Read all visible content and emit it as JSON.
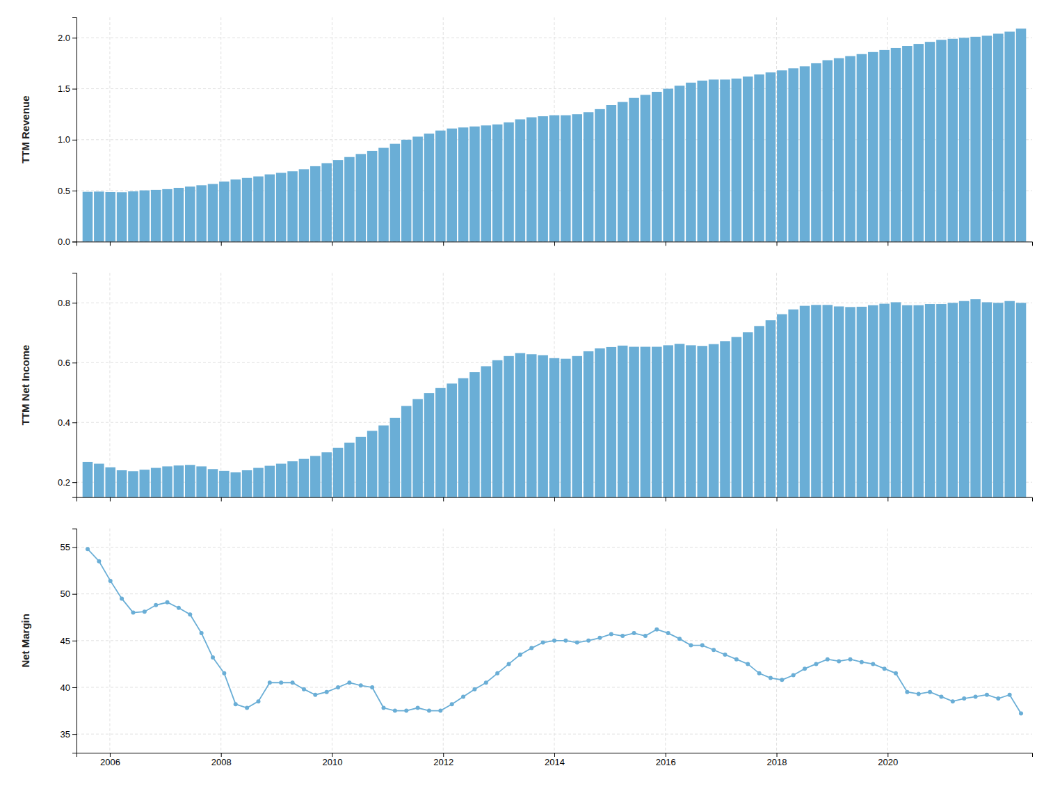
{
  "chart_data": [
    {
      "type": "bar",
      "ylabel": "TTM Revenue",
      "color": "#6aaed6",
      "grid": true,
      "tick_labels": "y",
      "x": [
        2005.6,
        2005.8049,
        2006.0098,
        2006.2146,
        2006.4195,
        2006.6244,
        2006.8293,
        2007.0341,
        2007.239,
        2007.4439,
        2007.6488,
        2007.8537,
        2008.0585,
        2008.2634,
        2008.4683,
        2008.6732,
        2008.878,
        2009.0829,
        2009.2878,
        2009.4927,
        2009.6976,
        2009.9024,
        2010.1073,
        2010.3122,
        2010.5171,
        2010.722,
        2010.9268,
        2011.1317,
        2011.3366,
        2011.5415,
        2011.7463,
        2011.9512,
        2012.1561,
        2012.361,
        2012.5659,
        2012.7707,
        2012.9756,
        2013.1805,
        2013.3854,
        2013.5902,
        2013.7951,
        2014.0,
        2014.2049,
        2014.4098,
        2014.6146,
        2014.8195,
        2015.0244,
        2015.2293,
        2015.4341,
        2015.639,
        2015.8439,
        2016.0488,
        2016.2537,
        2016.4585,
        2016.6634,
        2016.8683,
        2017.0732,
        2017.278,
        2017.4829,
        2017.6878,
        2017.8927,
        2018.0976,
        2018.3024,
        2018.5073,
        2018.7122,
        2018.9171,
        2019.122,
        2019.3268,
        2019.5317,
        2019.7366,
        2019.9415,
        2020.1463,
        2020.3512,
        2020.5561,
        2020.761,
        2020.9659,
        2021.1707,
        2021.3756,
        2021.5805,
        2021.7854,
        2021.9902,
        2022.1951,
        2022.4
      ],
      "values": [
        0.489,
        0.491,
        0.487,
        0.485,
        0.493,
        0.503,
        0.508,
        0.515,
        0.528,
        0.54,
        0.553,
        0.566,
        0.59,
        0.61,
        0.625,
        0.64,
        0.66,
        0.675,
        0.69,
        0.71,
        0.74,
        0.77,
        0.8,
        0.83,
        0.86,
        0.89,
        0.92,
        0.96,
        1.0,
        1.03,
        1.06,
        1.09,
        1.11,
        1.12,
        1.13,
        1.14,
        1.15,
        1.17,
        1.2,
        1.22,
        1.23,
        1.24,
        1.24,
        1.25,
        1.27,
        1.3,
        1.34,
        1.37,
        1.41,
        1.44,
        1.47,
        1.5,
        1.53,
        1.56,
        1.58,
        1.59,
        1.59,
        1.6,
        1.62,
        1.64,
        1.66,
        1.68,
        1.7,
        1.72,
        1.75,
        1.78,
        1.8,
        1.82,
        1.84,
        1.86,
        1.88,
        1.9,
        1.92,
        1.94,
        1.96,
        1.98,
        1.99,
        2.0,
        2.01,
        2.02,
        2.04,
        2.06,
        2.09
      ],
      "xlim": [
        2005.4,
        2022.6
      ],
      "xticks": [
        2006,
        2008,
        2010,
        2012,
        2014,
        2016,
        2018,
        2020
      ],
      "ylim": [
        0.0,
        2.2
      ],
      "yticks": [
        {
          "value": 0.0,
          "label": "0.0"
        },
        0.5,
        {
          "value": 1.0,
          "label": "1.0"
        },
        1.5,
        {
          "value": 2.0,
          "label": "2.0"
        }
      ]
    },
    {
      "type": "bar",
      "ylabel": "TTM Net Income",
      "color": "#6aaed6",
      "grid": true,
      "tick_labels": "y",
      "x": [
        2005.6,
        2005.8049,
        2006.0098,
        2006.2146,
        2006.4195,
        2006.6244,
        2006.8293,
        2007.0341,
        2007.239,
        2007.4439,
        2007.6488,
        2007.8537,
        2008.0585,
        2008.2634,
        2008.4683,
        2008.6732,
        2008.878,
        2009.0829,
        2009.2878,
        2009.4927,
        2009.6976,
        2009.9024,
        2010.1073,
        2010.3122,
        2010.5171,
        2010.722,
        2010.9268,
        2011.1317,
        2011.3366,
        2011.5415,
        2011.7463,
        2011.9512,
        2012.1561,
        2012.361,
        2012.5659,
        2012.7707,
        2012.9756,
        2013.1805,
        2013.3854,
        2013.5902,
        2013.7951,
        2014.0,
        2014.2049,
        2014.4098,
        2014.6146,
        2014.8195,
        2015.0244,
        2015.2293,
        2015.4341,
        2015.639,
        2015.8439,
        2016.0488,
        2016.2537,
        2016.4585,
        2016.6634,
        2016.8683,
        2017.0732,
        2017.278,
        2017.4829,
        2017.6878,
        2017.8927,
        2018.0976,
        2018.3024,
        2018.5073,
        2018.7122,
        2018.9171,
        2019.122,
        2019.3268,
        2019.5317,
        2019.7366,
        2019.9415,
        2020.1463,
        2020.3512,
        2020.5561,
        2020.761,
        2020.9659,
        2021.1707,
        2021.3756,
        2021.5805,
        2021.7854,
        2021.9902,
        2022.1951,
        2022.4
      ],
      "values": [
        0.268,
        0.262,
        0.25,
        0.24,
        0.237,
        0.242,
        0.248,
        0.253,
        0.256,
        0.258,
        0.253,
        0.244,
        0.238,
        0.233,
        0.24,
        0.248,
        0.255,
        0.262,
        0.27,
        0.278,
        0.288,
        0.3,
        0.315,
        0.332,
        0.352,
        0.372,
        0.39,
        0.415,
        0.455,
        0.478,
        0.498,
        0.515,
        0.53,
        0.548,
        0.568,
        0.588,
        0.608,
        0.622,
        0.632,
        0.628,
        0.625,
        0.615,
        0.613,
        0.622,
        0.638,
        0.648,
        0.652,
        0.657,
        0.653,
        0.653,
        0.653,
        0.658,
        0.663,
        0.658,
        0.656,
        0.662,
        0.672,
        0.686,
        0.702,
        0.722,
        0.742,
        0.762,
        0.778,
        0.79,
        0.793,
        0.793,
        0.788,
        0.786,
        0.787,
        0.792,
        0.797,
        0.802,
        0.792,
        0.792,
        0.796,
        0.796,
        0.8,
        0.806,
        0.812,
        0.802,
        0.8,
        0.806,
        0.8
      ],
      "xlim": [
        2005.4,
        2022.6
      ],
      "xticks": [
        2006,
        2008,
        2010,
        2012,
        2014,
        2016,
        2018,
        2020
      ],
      "ylim": [
        0.15,
        0.9
      ],
      "yticks": [
        0.2,
        0.4,
        0.6,
        0.8
      ]
    },
    {
      "type": "line",
      "ylabel": "Net Margin",
      "color": "#6aaed6",
      "marker": "circle",
      "grid": true,
      "x": [
        2005.6,
        2005.8049,
        2006.0098,
        2006.2146,
        2006.4195,
        2006.6244,
        2006.8293,
        2007.0341,
        2007.239,
        2007.4439,
        2007.6488,
        2007.8537,
        2008.0585,
        2008.2634,
        2008.4683,
        2008.6732,
        2008.878,
        2009.0829,
        2009.2878,
        2009.4927,
        2009.6976,
        2009.9024,
        2010.1073,
        2010.3122,
        2010.5171,
        2010.722,
        2010.9268,
        2011.1317,
        2011.3366,
        2011.5415,
        2011.7463,
        2011.9512,
        2012.1561,
        2012.361,
        2012.5659,
        2012.7707,
        2012.9756,
        2013.1805,
        2013.3854,
        2013.5902,
        2013.7951,
        2014.0,
        2014.2049,
        2014.4098,
        2014.6146,
        2014.8195,
        2015.0244,
        2015.2293,
        2015.4341,
        2015.639,
        2015.8439,
        2016.0488,
        2016.2537,
        2016.4585,
        2016.6634,
        2016.8683,
        2017.0732,
        2017.278,
        2017.4829,
        2017.6878,
        2017.8927,
        2018.0976,
        2018.3024,
        2018.5073,
        2018.7122,
        2018.9171,
        2019.122,
        2019.3268,
        2019.5317,
        2019.7366,
        2019.9415,
        2020.1463,
        2020.3512,
        2020.5561,
        2020.761,
        2020.9659,
        2021.1707,
        2021.3756,
        2021.5805,
        2021.7854,
        2021.9902,
        2022.1951,
        2022.4
      ],
      "values": [
        54.8,
        53.5,
        51.4,
        49.5,
        48.0,
        48.1,
        48.8,
        49.1,
        48.5,
        47.8,
        45.8,
        43.2,
        41.5,
        38.2,
        37.8,
        38.5,
        40.5,
        40.5,
        40.5,
        39.8,
        39.2,
        39.5,
        40.0,
        40.5,
        40.2,
        40.0,
        37.8,
        37.5,
        37.5,
        37.8,
        37.5,
        37.5,
        38.2,
        39.0,
        39.8,
        40.5,
        41.5,
        42.5,
        43.5,
        44.2,
        44.8,
        45.0,
        45.0,
        44.8,
        45.0,
        45.3,
        45.7,
        45.5,
        45.8,
        45.5,
        46.2,
        45.8,
        45.2,
        44.5,
        44.5,
        44.0,
        43.5,
        43.0,
        42.5,
        41.5,
        41.0,
        40.8,
        41.3,
        42.0,
        42.5,
        43.0,
        42.8,
        43.0,
        42.7,
        42.5,
        42.0,
        41.5,
        39.5,
        39.3,
        39.5,
        39.0,
        38.5,
        38.8,
        39.0,
        39.2,
        38.8,
        39.2,
        37.2
      ],
      "xlim": [
        2005.4,
        2022.6
      ],
      "xticks": [
        2006,
        2008,
        2010,
        2012,
        2014,
        2016,
        2018,
        2020
      ],
      "ylim": [
        33,
        57
      ],
      "yticks": [
        35,
        40,
        45,
        50,
        55
      ]
    }
  ]
}
